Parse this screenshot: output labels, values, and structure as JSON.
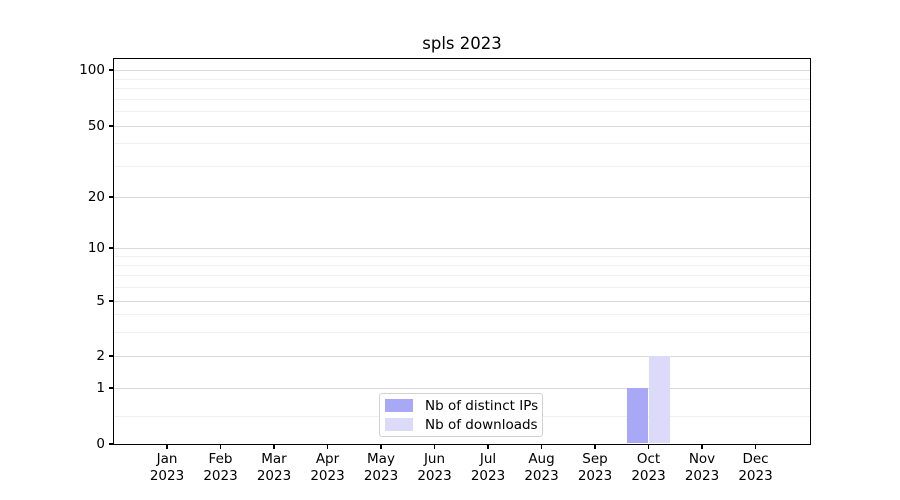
{
  "chart_data": {
    "type": "bar",
    "title": "spls 2023",
    "categories": [
      "Jan",
      "Feb",
      "Mar",
      "Apr",
      "May",
      "Jun",
      "Jul",
      "Aug",
      "Sep",
      "Oct",
      "Nov",
      "Dec"
    ],
    "category_year": "2023",
    "series": [
      {
        "name": "Nb of distinct IPs",
        "color": "#a8a8f7",
        "values": [
          0,
          0,
          0,
          0,
          0,
          0,
          0,
          0,
          0,
          1,
          0,
          0
        ]
      },
      {
        "name": "Nb of downloads",
        "color": "#dbdbf9",
        "values": [
          0,
          0,
          0,
          0,
          0,
          0,
          0,
          0,
          0,
          2,
          0,
          0
        ]
      }
    ],
    "xlabel": "",
    "ylabel": "",
    "yscale": "symlog",
    "yticks": [
      0,
      1,
      2,
      5,
      10,
      20,
      50,
      100
    ],
    "minor_yticks": [
      0.5,
      3,
      4,
      6,
      7,
      8,
      9,
      30,
      40,
      60,
      70,
      80,
      90
    ],
    "ylim": [
      0,
      130
    ],
    "grid": true,
    "legend_position": "lower center",
    "colors": {
      "background": "#ffffff",
      "axis": "#000000",
      "text": "#000000",
      "grid_major": "#d9d9d9",
      "grid_minor": "#f1f1f1",
      "legend_border": "#d2d2d2"
    }
  }
}
